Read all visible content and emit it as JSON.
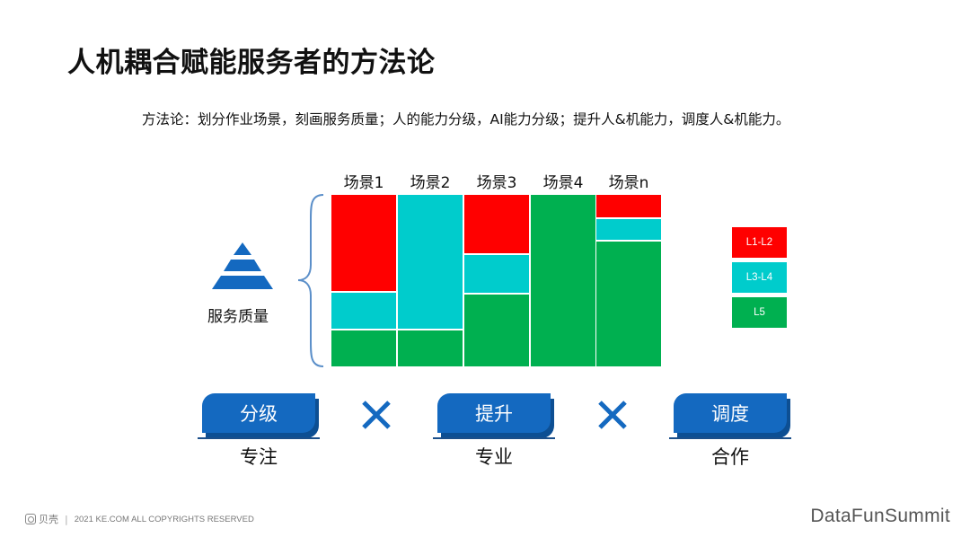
{
  "title": "人机耦合赋能服务者的方法论",
  "subtitle": "方法论：划分作业场景，刻画服务质量；人的能力分级，AI能力分级；提升人&机能力，调度人&机能力。",
  "pyramid_label": "服务质量",
  "colors": {
    "red": "#ff0000",
    "cyan": "#00cccc",
    "green": "#00b050",
    "blue": "#1469c0"
  },
  "chart_data": {
    "type": "mosaic",
    "categories": [
      "场景1",
      "场景2",
      "场景3",
      "场景4",
      "场景n"
    ],
    "legend": [
      "L1-L2",
      "L3-L4",
      "L5"
    ],
    "series": [
      {
        "name": "L1-L2",
        "values": [
          0.57,
          0.0,
          0.35,
          0.0,
          0.14
        ]
      },
      {
        "name": "L3-L4",
        "values": [
          0.22,
          0.79,
          0.23,
          0.0,
          0.13
        ]
      },
      {
        "name": "L5",
        "values": [
          0.21,
          0.21,
          0.42,
          1.0,
          0.73
        ]
      }
    ]
  },
  "actions": [
    {
      "label": "分级",
      "sub": "专注"
    },
    {
      "label": "提升",
      "sub": "专业"
    },
    {
      "label": "调度",
      "sub": "合作"
    }
  ],
  "footer": {
    "logo_text": "贝壳",
    "copyright": "2021 KE.COM ALL COPYRIGHTS  RESERVED",
    "brand": "DataFunSummit"
  }
}
